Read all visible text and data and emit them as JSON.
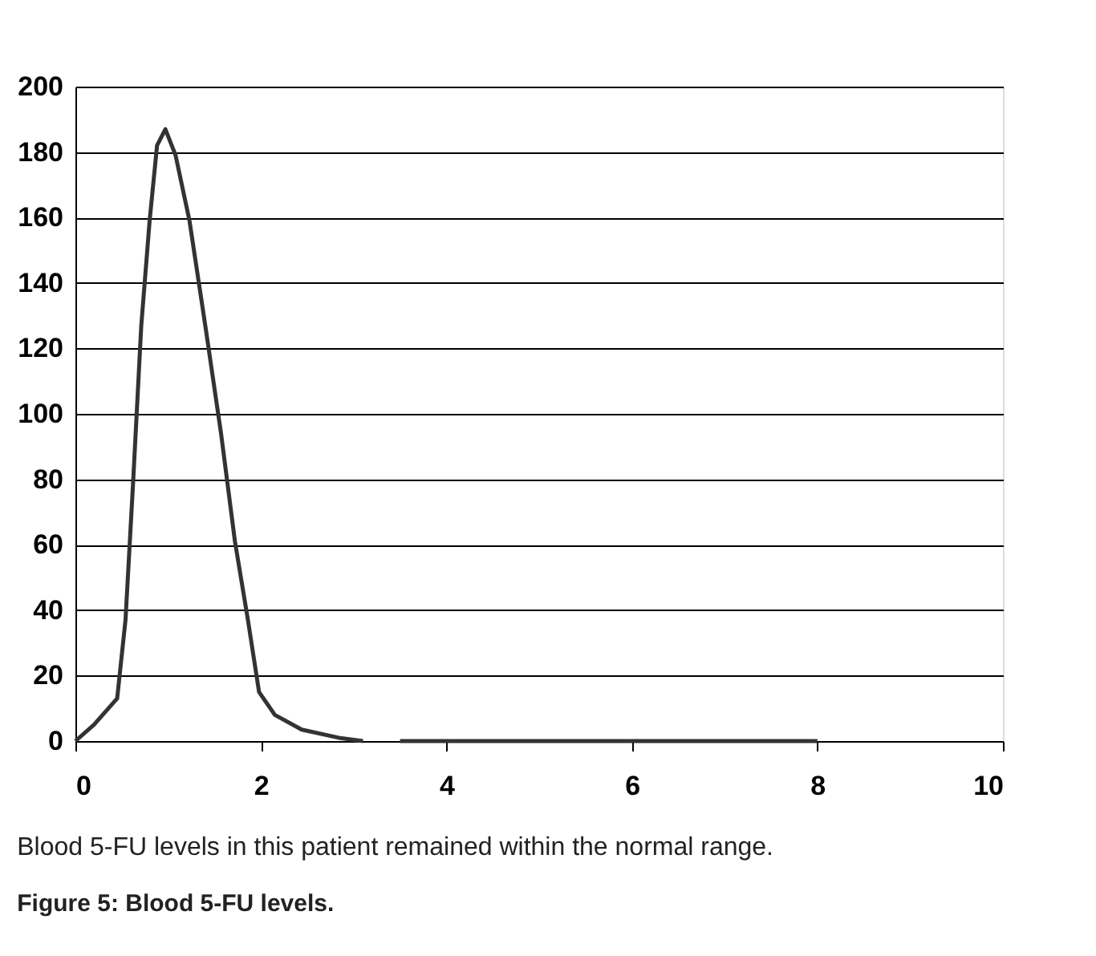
{
  "chart_data": {
    "type": "line",
    "x": [
      0,
      0.2,
      0.45,
      0.54,
      0.62,
      0.71,
      0.8,
      0.88,
      0.97,
      1.08,
      1.23,
      1.4,
      1.57,
      1.72,
      1.86,
      1.98,
      2.15,
      2.44,
      2.84,
      3.1,
      3.3,
      3.5,
      8
    ],
    "series": [
      {
        "color": "#333333",
        "values": [
          0,
          5,
          13,
          37,
          78,
          127,
          159,
          182,
          187,
          179,
          159,
          127,
          94,
          61,
          37,
          15,
          8,
          3.5,
          1,
          0,
          null,
          0,
          0
        ]
      }
    ],
    "xlim": [
      0,
      10
    ],
    "xticks": [
      0,
      2,
      4,
      6,
      8,
      10
    ],
    "ylim": [
      0,
      200
    ],
    "yticks": [
      0,
      20,
      40,
      60,
      80,
      100,
      120,
      140,
      160,
      180,
      200
    ],
    "grid": "y",
    "marker": "none",
    "line_style": "solid",
    "annotations": [
      "Blood 5-FU levels in this patient remained within the normal range.",
      "Figure 5: Blood 5-FU levels."
    ]
  }
}
